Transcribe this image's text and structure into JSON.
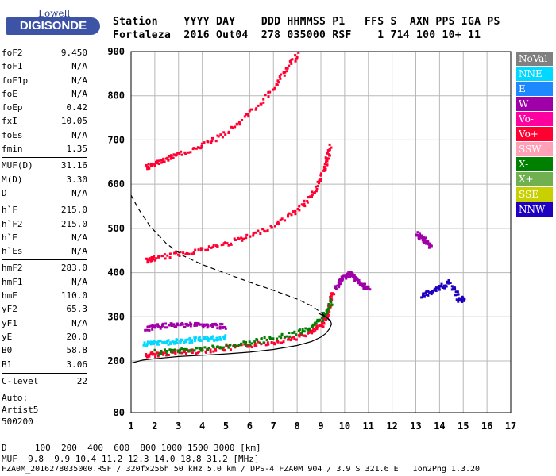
{
  "logo": {
    "top": "Lowell",
    "main": "DIGISONDE"
  },
  "header": {
    "line1": "Station    YYYY DAY    DDD HHMMSS P1   FFS S  AXN PPS IGA PS",
    "line2": "Fortaleza  2016 Out04  278 035000 RSF    1 714 100 10+ 11"
  },
  "params_group1": [
    {
      "name": "foF2",
      "value": "9.450"
    },
    {
      "name": "foF1",
      "value": "N/A"
    },
    {
      "name": "foF1p",
      "value": "N/A"
    },
    {
      "name": "foE",
      "value": "N/A"
    },
    {
      "name": "foEp",
      "value": "0.42"
    },
    {
      "name": "fxI",
      "value": "10.05"
    },
    {
      "name": "foEs",
      "value": "N/A"
    },
    {
      "name": "fmin",
      "value": "1.35"
    }
  ],
  "params_group2": [
    {
      "name": "MUF(D)",
      "value": "31.16"
    },
    {
      "name": "M(D)",
      "value": "3.30"
    },
    {
      "name": "D",
      "value": "N/A"
    }
  ],
  "params_group3": [
    {
      "name": "h`F",
      "value": "215.0"
    },
    {
      "name": "h`F2",
      "value": "215.0"
    },
    {
      "name": "h`E",
      "value": "N/A"
    },
    {
      "name": "h`Es",
      "value": "N/A"
    }
  ],
  "params_group4": [
    {
      "name": "hmF2",
      "value": "283.0"
    },
    {
      "name": "hmF1",
      "value": "N/A"
    },
    {
      "name": "hmE",
      "value": "110.0"
    },
    {
      "name": "yF2",
      "value": "65.3"
    },
    {
      "name": "yF1",
      "value": "N/A"
    },
    {
      "name": "yE",
      "value": "20.0"
    },
    {
      "name": "B0",
      "value": "58.8"
    },
    {
      "name": "B1",
      "value": "3.06"
    }
  ],
  "params_group5": [
    {
      "name": "C-level",
      "value": "22"
    }
  ],
  "auto": {
    "line1": "Auto:",
    "line2": "Artist5",
    "line3": "500200"
  },
  "legend": [
    {
      "label": "NoVal",
      "color": "#808080"
    },
    {
      "label": "NNE",
      "color": "#00d8ff"
    },
    {
      "label": "E",
      "color": "#1e88ff"
    },
    {
      "label": "W",
      "color": "#a000a8"
    },
    {
      "label": "Vo-",
      "color": "#ff00a0"
    },
    {
      "label": "Vo+",
      "color": "#ff0030"
    },
    {
      "label": "SSW",
      "color": "#ffa0b8"
    },
    {
      "label": "X-",
      "color": "#008000"
    },
    {
      "label": "X+",
      "color": "#70b050"
    },
    {
      "label": "SSE",
      "color": "#c8d000"
    },
    {
      "label": "NNW",
      "color": "#2000c0"
    }
  ],
  "footer": {
    "d_label": "D",
    "d_values": "  100  200  400  600  800 1000 1500 3000 [km]",
    "muf_label": "MUF",
    "muf_values": "  9.8  9.9 10.4 11.2 12.3 14.0 18.8 31.2 [MHz]",
    "file_line": "FZA0M_2016278035000.RSF / 320fx256h 50 kHz 5.0 km / DPS-4 FZA0M 904 / 3.9 S 321.6 E   Ion2Png 1.3.20"
  },
  "chart_data": {
    "type": "scatter",
    "xlim": [
      1,
      17
    ],
    "ylim": [
      80,
      900
    ],
    "xticks": [
      "1",
      "2",
      "3",
      "4",
      "5",
      "6",
      "7",
      "8",
      "9",
      "10",
      "11",
      "12",
      "13",
      "14",
      "15",
      "16",
      "17"
    ],
    "yticks": [
      "80",
      "200",
      "300",
      "400",
      "500",
      "600",
      "700",
      "800",
      "900"
    ],
    "grid": true,
    "profile_solid": {
      "x": [
        1.0,
        1.5,
        2.0,
        3.0,
        4.0,
        5.0,
        6.0,
        7.0,
        8.0,
        8.6,
        9.0,
        9.2,
        9.35,
        9.45,
        9.4,
        9.2,
        8.9
      ],
      "y": [
        195,
        202,
        205,
        210,
        213,
        216,
        220,
        226,
        235,
        244,
        254,
        262,
        272,
        283,
        292,
        300,
        308
      ]
    },
    "profile_dashed": {
      "x": [
        1.0,
        1.3,
        1.8,
        2.5,
        3.2,
        4.0,
        5.0,
        6.0,
        7.0,
        8.0,
        8.6,
        9.0,
        9.4
      ],
      "y": [
        575,
        545,
        505,
        465,
        438,
        418,
        398,
        378,
        360,
        340,
        325,
        310,
        290
      ]
    },
    "traces": [
      {
        "name": "o-trace F2",
        "color": "#ff0030",
        "x": [
          1.6,
          2,
          3,
          4,
          5,
          6,
          7,
          8,
          8.6,
          9,
          9.2,
          9.35,
          9.45
        ],
        "y": [
          215,
          218,
          222,
          226,
          231,
          238,
          246,
          257,
          268,
          285,
          305,
          330,
          360
        ]
      },
      {
        "name": "x-trace F2",
        "color": "#008000",
        "x": [
          2,
          3,
          4,
          5,
          6,
          7,
          8,
          8.7,
          9.1,
          9.4
        ],
        "y": [
          222,
          226,
          230,
          236,
          244,
          254,
          268,
          282,
          305,
          340
        ]
      },
      {
        "name": "o-trace 2F2",
        "color": "#ff0030",
        "x": [
          1.6,
          2,
          3,
          4,
          5,
          6,
          7,
          8,
          8.6,
          9,
          9.2,
          9.35
        ],
        "y": [
          430,
          435,
          445,
          455,
          468,
          485,
          510,
          545,
          580,
          620,
          655,
          690
        ]
      },
      {
        "name": "o-trace 3F2",
        "color": "#ff0030",
        "x": [
          1.6,
          2,
          2.5,
          3,
          4,
          5,
          6,
          7,
          7.5,
          8
        ],
        "y": [
          640,
          650,
          660,
          670,
          690,
          720,
          765,
          820,
          860,
          900
        ]
      },
      {
        "name": "W cluster",
        "color": "#a000a8",
        "x": [
          1.6,
          2,
          2.5,
          3,
          3.5,
          4,
          4.5,
          5
        ],
        "y": [
          275,
          280,
          282,
          284,
          285,
          283,
          282,
          280
        ]
      },
      {
        "name": "NNE cluster",
        "color": "#00d8ff",
        "x": [
          1.5,
          2,
          2.5,
          3,
          3.5,
          4,
          4.5,
          5
        ],
        "y": [
          240,
          242,
          245,
          247,
          250,
          252,
          254,
          256
        ]
      },
      {
        "name": "spread F 10MHz",
        "color": "#a000a8",
        "x": [
          9.6,
          9.8,
          10,
          10.2,
          10.4,
          10.6,
          10.8,
          11
        ],
        "y": [
          370,
          385,
          395,
          400,
          390,
          380,
          370,
          365
        ]
      },
      {
        "name": "W 13MHz",
        "color": "#a000a8",
        "x": [
          13,
          13.2,
          13.4,
          13.6
        ],
        "y": [
          490,
          480,
          470,
          460
        ]
      },
      {
        "name": "NNW 14MHz",
        "color": "#2000c0",
        "x": [
          13.2,
          13.6,
          14,
          14.4,
          14.8,
          15
        ],
        "y": [
          350,
          360,
          370,
          380,
          340,
          345
        ]
      }
    ]
  }
}
